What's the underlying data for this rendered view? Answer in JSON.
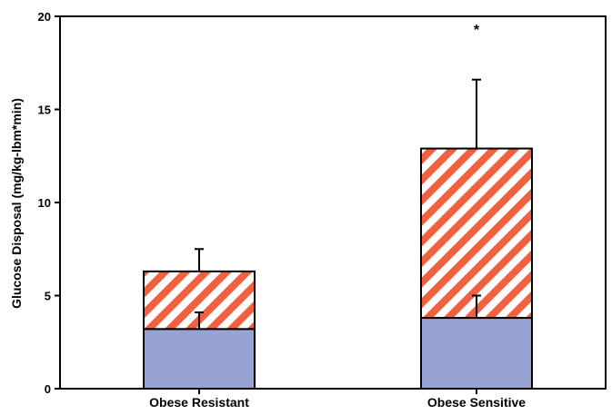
{
  "chart_data": {
    "type": "bar",
    "stacked": true,
    "categories": [
      "Obese Resistant",
      "Obese Sensitive"
    ],
    "series": [
      {
        "values": [
          3.2,
          3.8
        ],
        "errors": [
          0.9,
          1.2
        ],
        "color": "#99a3d3",
        "pattern": "solid"
      },
      {
        "values": [
          3.1,
          9.1
        ],
        "errors": [
          1.2,
          3.7
        ],
        "color": "#f2613f",
        "pattern": "diagonal-hatch"
      }
    ],
    "totals": [
      6.3,
      12.9
    ],
    "ylabel": "Glucose Disposal (mg/kg-lbm*min)",
    "xlabel": "",
    "ylim": [
      0,
      20
    ],
    "yticks": [
      0,
      5,
      10,
      15,
      20
    ],
    "grid": false,
    "annotations": [
      {
        "category": "Obese Sensitive",
        "text": "*"
      }
    ]
  }
}
